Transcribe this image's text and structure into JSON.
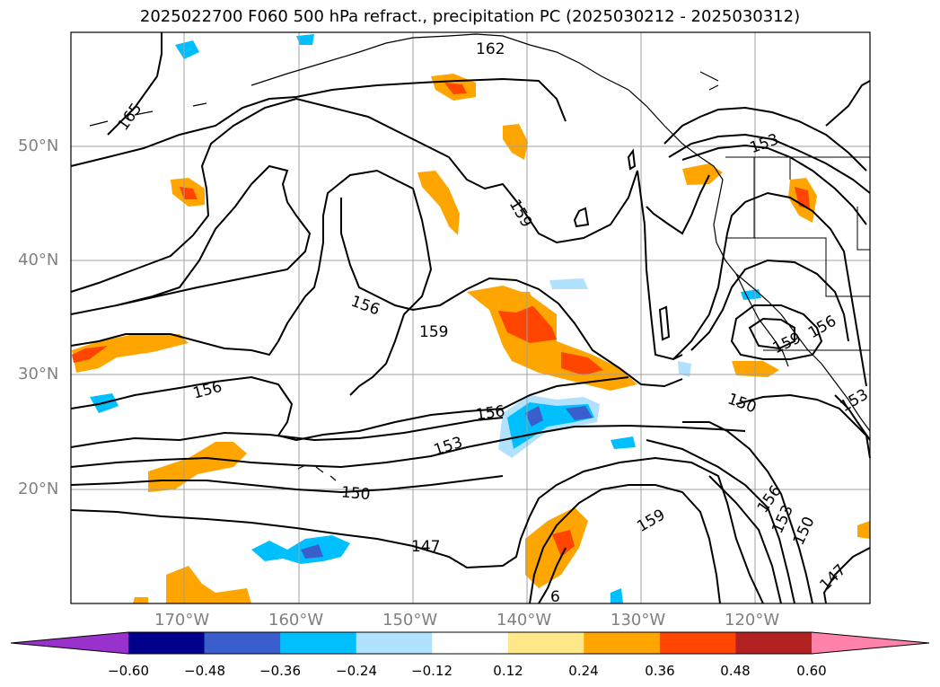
{
  "title": "2025022700 F060 500 hPa refract., precipitation PC (2025030212 - 2025030312)",
  "lat_labels": [
    "50°N",
    "40°N",
    "30°N",
    "20°N"
  ],
  "lon_labels": [
    "170°W",
    "160°W",
    "150°W",
    "140°W",
    "130°W",
    "120°W"
  ],
  "contour_labels": [
    "162",
    "165",
    "159",
    "156",
    "159",
    "156",
    "156",
    "153",
    "150",
    "147",
    "159",
    "156",
    "153",
    "150",
    "147",
    "153",
    "159",
    "156",
    "150",
    "153",
    "6"
  ],
  "colorbar": {
    "ticks": [
      "−0.60",
      "−0.48",
      "−0.36",
      "−0.24",
      "−0.12",
      "0.12",
      "0.24",
      "0.36",
      "0.48",
      "0.60"
    ],
    "colors": [
      "#9932cc",
      "#00008b",
      "#3a5fcd",
      "#00bfff",
      "#b0e2ff",
      "#ffffff",
      "#ffe88a",
      "#ffa500",
      "#ff4500",
      "#b22222",
      "#ff82ab"
    ]
  }
}
